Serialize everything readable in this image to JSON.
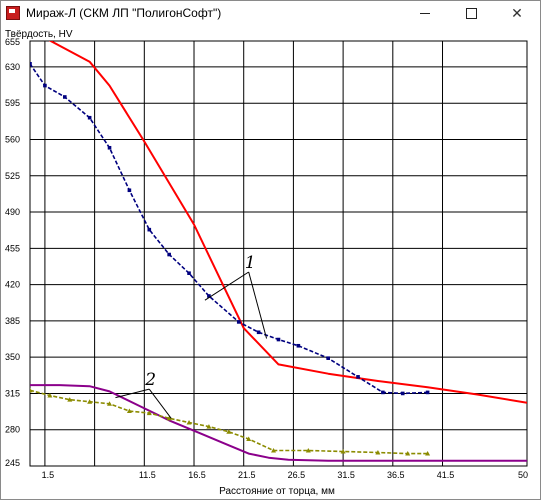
{
  "window": {
    "title": "Мираж-Л (СКМ ЛП \"ПолигонСофт\")",
    "min_icon": "minimize-icon",
    "max_icon": "maximize-icon",
    "close_icon": "close-icon",
    "close_glyph": "✕"
  },
  "chart_data": {
    "type": "line",
    "ylabel": "Твёрдость, HV",
    "xlabel": "Расстояние от торца, мм",
    "xlim": [
      0,
      50
    ],
    "ylim": [
      245,
      655
    ],
    "x_ticks": [
      1.5,
      6.5,
      11.5,
      16.5,
      21.5,
      26.5,
      31.5,
      36.5,
      41.5,
      50
    ],
    "x_tick_labels": [
      "1.5",
      "",
      "11.5",
      "16.5",
      "21.5",
      "26.5",
      "31.5",
      "36.5",
      "41.5",
      "50"
    ],
    "y_ticks": [
      245,
      280,
      315,
      350,
      385,
      420,
      455,
      490,
      525,
      560,
      595,
      630,
      655
    ],
    "grid": true,
    "series": [
      {
        "style": "solid",
        "color": "#ff0000",
        "x": [
          0,
          1.5,
          6,
          8,
          11.5,
          16.5,
          21.5,
          25,
          30,
          35,
          40,
          45,
          50
        ],
        "y": [
          666,
          658,
          635,
          612,
          558,
          478,
          378,
          343,
          334,
          327,
          321,
          314,
          306
        ]
      },
      {
        "style": "dashed-markers",
        "color": "#00007f",
        "x": [
          0,
          1.5,
          3.5,
          6,
          8,
          10,
          12,
          14,
          16,
          18,
          21,
          23,
          25,
          27,
          30,
          33,
          35.5,
          37.5,
          40
        ],
        "y": [
          633,
          612,
          601,
          581,
          552,
          511,
          473,
          449,
          431,
          409,
          384,
          374,
          367,
          361,
          349,
          331,
          316,
          315,
          316
        ]
      },
      {
        "style": "solid",
        "color": "#8b008b",
        "x": [
          0,
          3,
          6,
          8,
          11,
          14,
          17,
          20,
          22,
          24,
          26,
          30,
          35,
          40,
          45,
          50
        ],
        "y": [
          323,
          323,
          322,
          317,
          303,
          289,
          277,
          265,
          257,
          253,
          251,
          250,
          250,
          250,
          250,
          250
        ]
      },
      {
        "style": "dashed-markers",
        "color": "#8b8b00",
        "x": [
          0,
          2,
          4,
          6,
          8,
          10,
          12,
          14,
          16,
          18,
          20,
          22,
          24.5,
          28,
          31.5,
          35,
          38,
          40
        ],
        "y": [
          318,
          313,
          309,
          307,
          305,
          298,
          296,
          291,
          287,
          283,
          278,
          271,
          260,
          260,
          259,
          258,
          257,
          257
        ]
      }
    ],
    "annotations": [
      {
        "text": "1",
        "x": 21.8,
        "y": 436,
        "targets": [
          [
            17.6,
            405
          ],
          [
            23.8,
            368
          ]
        ]
      },
      {
        "text": "2",
        "x": 11.8,
        "y": 323,
        "targets": [
          [
            8.6,
            311
          ],
          [
            14.2,
            291
          ]
        ]
      }
    ]
  }
}
